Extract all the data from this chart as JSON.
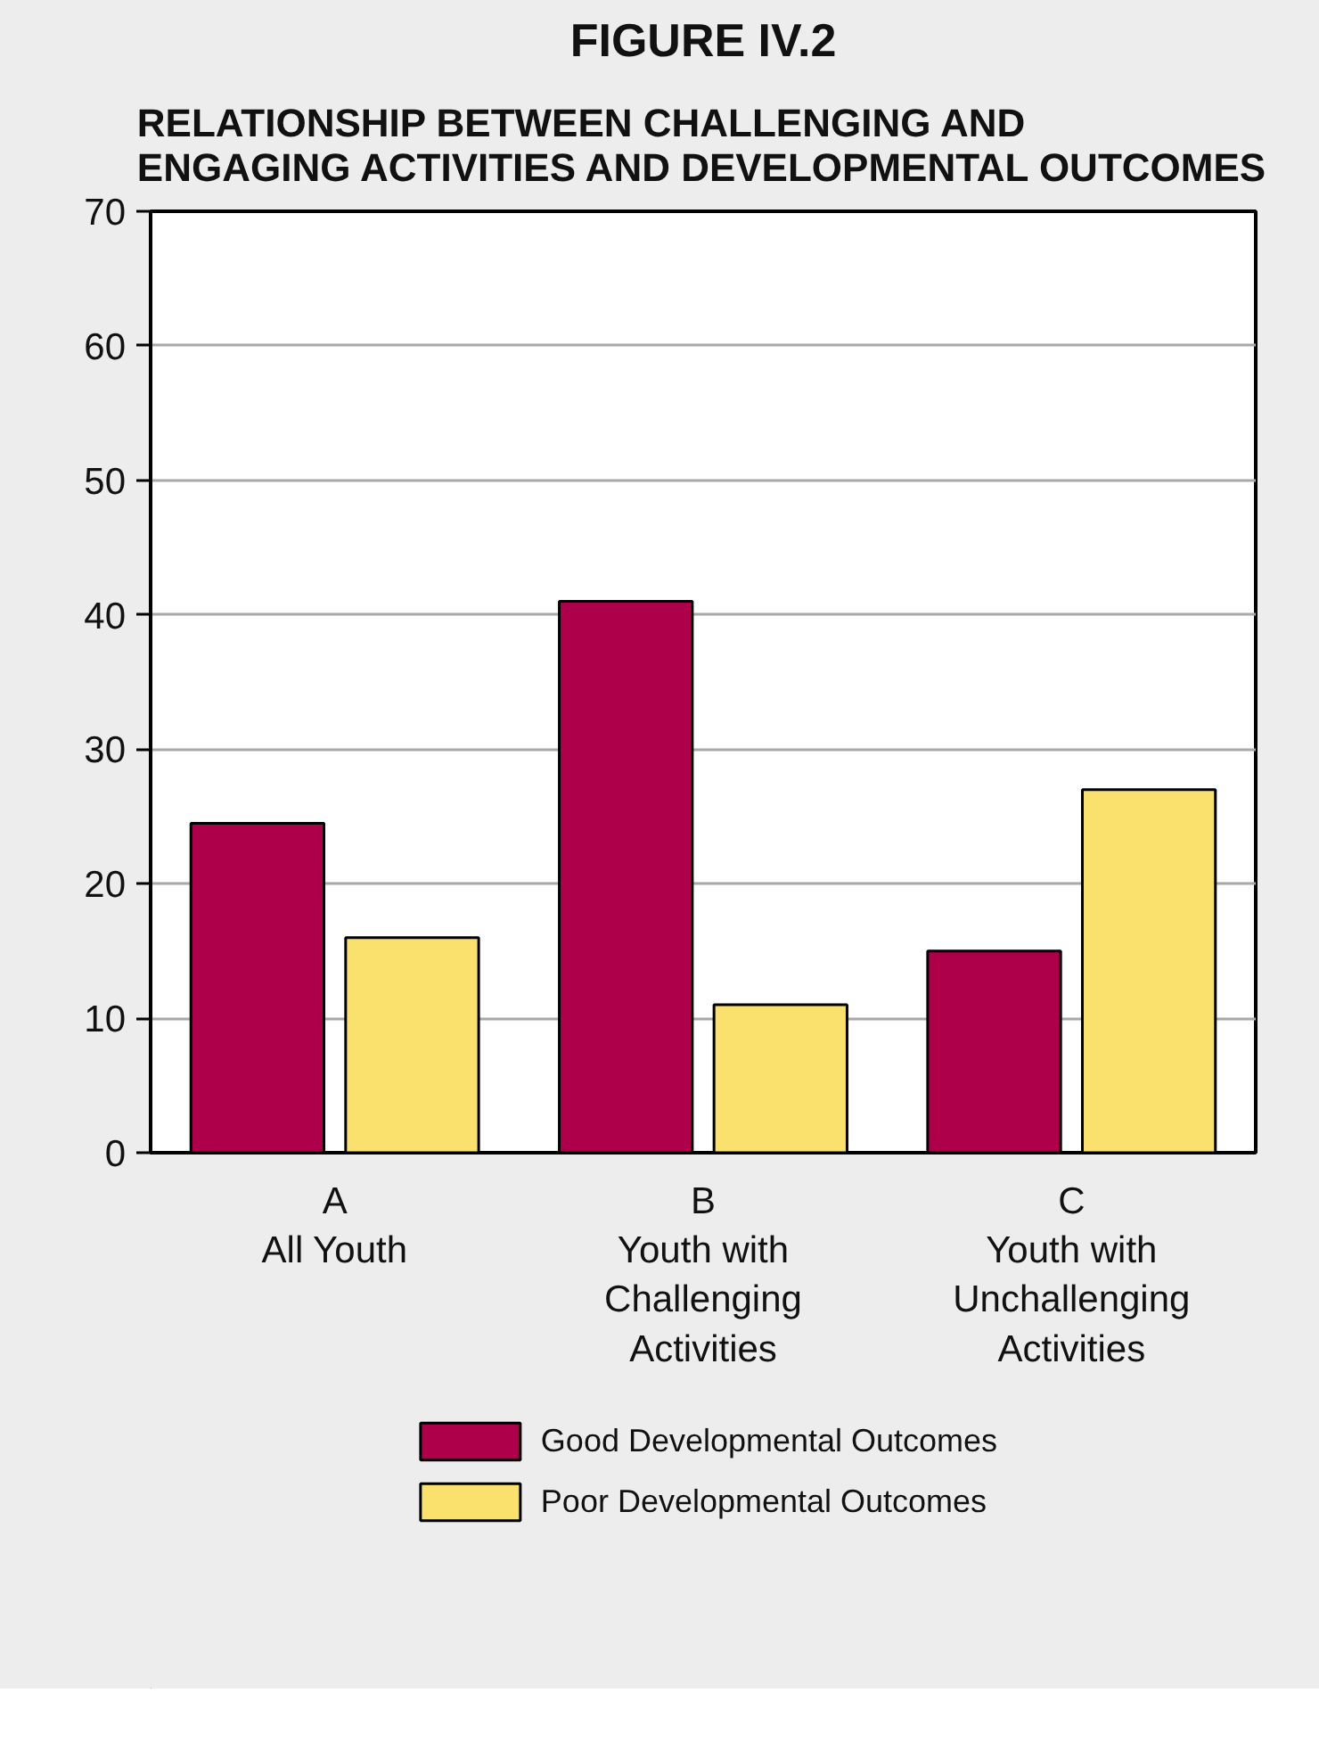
{
  "chart_data": {
    "type": "bar",
    "title": "FIGURE IV.2",
    "subtitle": "RELATIONSHIP BETWEEN CHALLENGING AND\nENGAGING ACTIVITIES AND DEVELOPMENTAL OUTCOMES",
    "categories": [
      "A\nAll Youth",
      "B\nYouth with\nChallenging\nActivities",
      "C\nYouth with\nUnchallenging\nActivities"
    ],
    "series": [
      {
        "name": "Good Developmental Outcomes",
        "color": "#ae004a",
        "values": [
          24.5,
          41,
          15
        ]
      },
      {
        "name": "Poor Developmental Outcomes",
        "color": "#fae06d",
        "values": [
          16,
          11,
          27
        ]
      }
    ],
    "ylim": [
      0,
      70
    ],
    "yticks": [
      0,
      10,
      20,
      30,
      40,
      50,
      60,
      70
    ],
    "grid": "y",
    "legend": "bottom"
  }
}
